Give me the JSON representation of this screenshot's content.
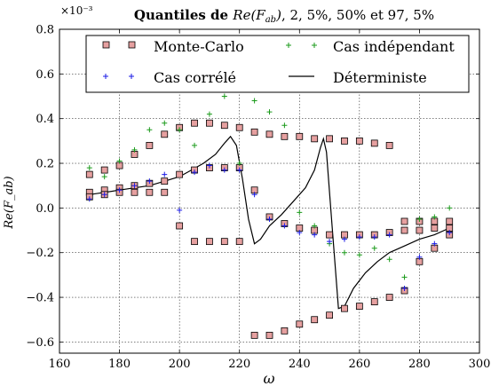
{
  "chart_data": {
    "type": "scatter",
    "title": "Quantiles de Re(F_ab), 2,5%, 50% et 97,5%",
    "title_parts": {
      "prefix": "Quantiles de ",
      "math": "Re(F",
      "math_sub": "ab",
      "math_close": ")",
      "suffix": ", 2, 5%, 50% et 97, 5%"
    },
    "xlabel": "ω",
    "ylabel": "Re(F_ab)",
    "y_multiplier": "×10⁻³",
    "xlim": [
      160,
      300
    ],
    "ylim": [
      -0.65,
      0.8
    ],
    "xticks": [
      160,
      180,
      200,
      220,
      240,
      260,
      280,
      300
    ],
    "yticks": [
      -0.6,
      -0.4,
      -0.2,
      0.0,
      0.2,
      0.4,
      0.6,
      0.8
    ],
    "ytick_labels": [
      "−0.6",
      "−0.4",
      "−0.2",
      "0.0",
      "0.2",
      "0.4",
      "0.6",
      "0.8"
    ],
    "grid": true,
    "legend_position": "top",
    "legend": [
      {
        "name": "Monte-Carlo",
        "marker": "square"
      },
      {
        "name": "Cas indépendant",
        "marker": "plus-green"
      },
      {
        "name": "Cas corrélé",
        "marker": "plus-blue"
      },
      {
        "name": "Déterministe",
        "marker": "line"
      }
    ],
    "colors": {
      "monte_carlo_fill": "#e6a0a0",
      "independant": "#1a9a1a",
      "correle": "#1a1ae6",
      "deterministe": "#000000"
    },
    "deterministic_line": {
      "x": [
        170,
        175,
        180,
        185,
        190,
        195,
        200,
        204,
        208,
        212,
        215,
        217,
        219,
        221,
        223,
        225,
        227,
        230,
        234,
        238,
        242,
        245,
        247,
        248,
        249,
        251,
        253,
        255,
        258,
        262,
        266,
        270,
        275,
        280,
        285,
        290
      ],
      "y": [
        0.06,
        0.07,
        0.08,
        0.09,
        0.1,
        0.12,
        0.14,
        0.17,
        0.2,
        0.24,
        0.29,
        0.32,
        0.28,
        0.13,
        -0.05,
        -0.16,
        -0.14,
        -0.08,
        -0.03,
        0.03,
        0.09,
        0.17,
        0.27,
        0.31,
        0.25,
        -0.1,
        -0.45,
        -0.44,
        -0.36,
        -0.29,
        -0.24,
        -0.2,
        -0.17,
        -0.14,
        -0.12,
        -0.09
      ]
    },
    "x": [
      170,
      175,
      180,
      185,
      190,
      195,
      200,
      205,
      210,
      215,
      220,
      225,
      230,
      235,
      240,
      245,
      250,
      255,
      260,
      265,
      270,
      275,
      280,
      285,
      290
    ],
    "series": [
      {
        "key": "mc_upper",
        "values": [
          0.15,
          0.17,
          0.19,
          0.24,
          0.28,
          0.33,
          0.36,
          0.38,
          0.38,
          0.37,
          0.36,
          0.34,
          0.33,
          0.32,
          0.32,
          0.31,
          0.31,
          0.3,
          0.3,
          0.29,
          0.28,
          -0.06,
          -0.06,
          -0.06,
          -0.06
        ]
      },
      {
        "key": "mc_median",
        "values": [
          0.07,
          0.08,
          0.09,
          0.1,
          0.11,
          0.12,
          0.15,
          0.17,
          0.18,
          0.18,
          0.18,
          0.08,
          -0.04,
          -0.07,
          -0.09,
          -0.1,
          -0.12,
          -0.12,
          -0.12,
          -0.12,
          -0.11,
          -0.1,
          -0.1,
          -0.09,
          -0.09
        ]
      },
      {
        "key": "mc_lower",
        "values": [
          0.05,
          0.06,
          0.07,
          0.07,
          0.07,
          0.07,
          -0.08,
          -0.15,
          -0.15,
          -0.15,
          -0.15,
          -0.57,
          -0.57,
          -0.55,
          -0.52,
          -0.5,
          -0.48,
          -0.45,
          -0.44,
          -0.42,
          -0.4,
          -0.37,
          -0.24,
          -0.18,
          -0.12
        ]
      },
      {
        "key": "independant",
        "values": [
          0.18,
          0.14,
          0.21,
          0.26,
          0.35,
          0.38,
          0.35,
          0.28,
          0.42,
          0.5,
          0.2,
          0.48,
          0.43,
          0.37,
          -0.02,
          -0.08,
          -0.16,
          -0.2,
          -0.21,
          -0.18,
          -0.23,
          -0.31,
          -0.05,
          -0.04,
          0.0
        ]
      },
      {
        "key": "correle",
        "values": [
          0.04,
          0.06,
          0.08,
          0.1,
          0.12,
          0.15,
          -0.01,
          0.16,
          0.19,
          0.17,
          0.17,
          0.06,
          -0.05,
          -0.08,
          -0.11,
          -0.12,
          -0.15,
          -0.14,
          -0.13,
          -0.13,
          -0.12,
          -0.36,
          -0.22,
          -0.16,
          -0.11
        ]
      }
    ]
  }
}
